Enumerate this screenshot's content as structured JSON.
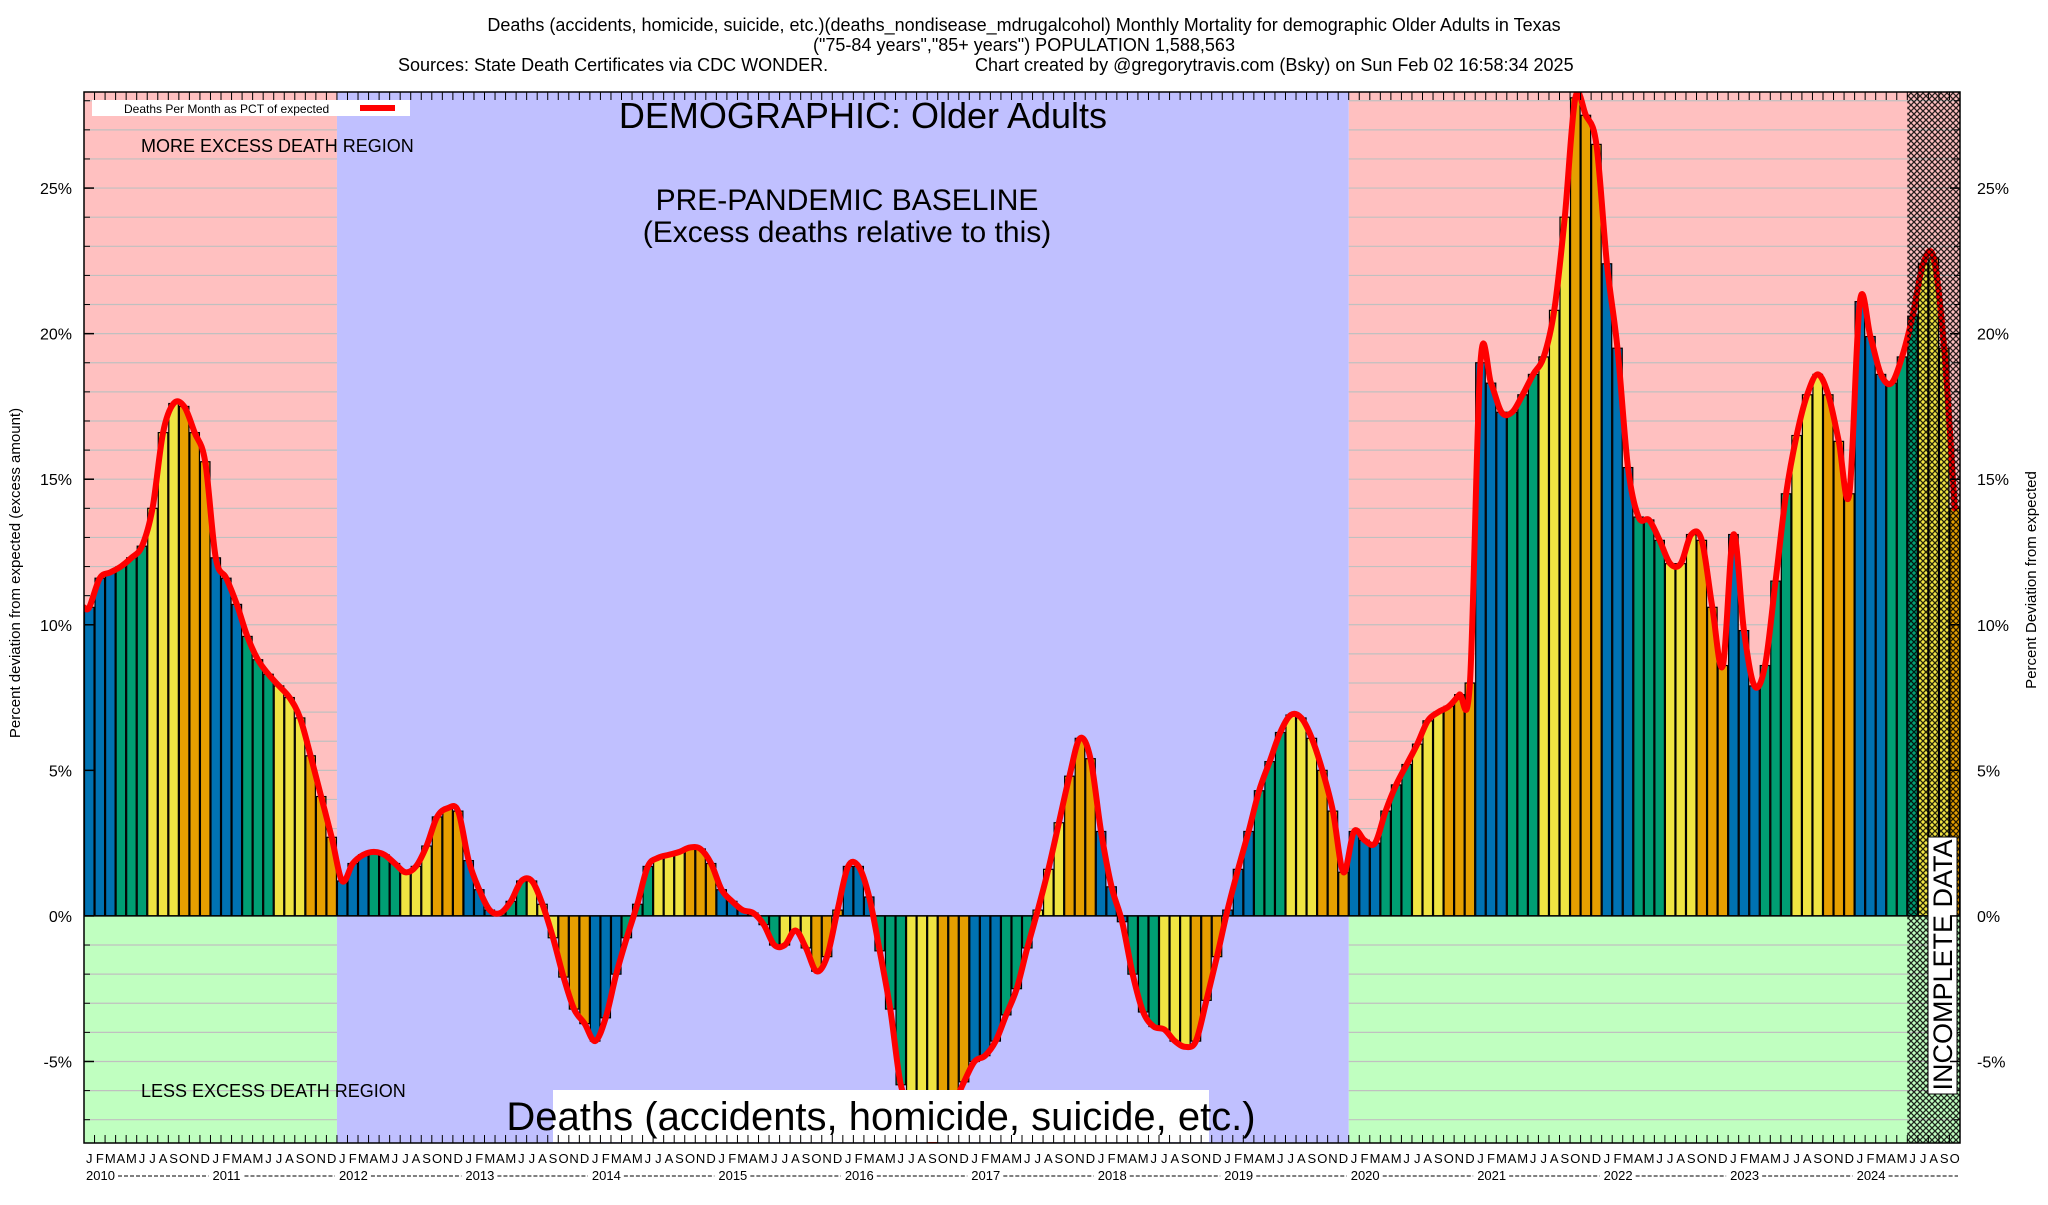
{
  "header": {
    "title_line1": "Deaths (accidents, homicide, suicide, etc.)(deaths_nondisease_mdrugalcohol) Monthly Mortality for demographic Older Adults in Texas",
    "title_line2": "(\"75-84 years\",\"85+ years\") POPULATION 1,588,563",
    "sources": "Sources: State Death Certificates via CDC WONDER.",
    "credit": "Chart created by @gregorytravis.com (Bsky) on Sun Feb 02 16:58:34 2025"
  },
  "annotations": {
    "demographic": "DEMOGRAPHIC: Older Adults",
    "more_region": "MORE EXCESS DEATH REGION",
    "less_region": "LESS EXCESS DEATH REGION",
    "baseline_line1": "PRE-PANDEMIC BASELINE",
    "baseline_line2": "(Excess deaths relative to this)",
    "cause_label": "Deaths (accidents, homicide, suicide, etc.)",
    "incomplete": "INCOMPLETE DATA"
  },
  "colors": {
    "q1": "#0072B2",
    "q2": "#009E73",
    "q3": "#F0E442",
    "q4": "#E69F00",
    "line": "#FF0000",
    "more_bg": "#FFC0C0",
    "less_bg": "#C0FFC0",
    "baseline_bg": "#C0C0FF",
    "grid": "#C0C0C0"
  },
  "chart_data": {
    "type": "bar",
    "title": "Deaths (accidents, homicide, suicide, etc.) Monthly Mortality for demographic Older Adults in Texas",
    "legend": {
      "label": "Deaths Per Month as PCT of expected",
      "placement": "top-left"
    },
    "ylabel_left": "Percent deviation from expected (excess amount)",
    "ylabel_right": "Percent Deviation from expected",
    "ylim": [
      -7.8,
      28.3
    ],
    "yticks": [
      -5,
      0,
      5,
      10,
      15,
      20,
      25
    ],
    "ytick_labels": [
      "-5%",
      "0%",
      "5%",
      "10%",
      "15%",
      "20%",
      "25%"
    ],
    "grid": true,
    "start": "2010-01",
    "month_letters": [
      "J",
      "F",
      "M",
      "A",
      "M",
      "J",
      "J",
      "A",
      "S",
      "O",
      "N",
      "D"
    ],
    "years": [
      "2010",
      "2011",
      "2012",
      "2013",
      "2014",
      "2015",
      "2016",
      "2017",
      "2018",
      "2019",
      "2020",
      "2021",
      "2022",
      "2023",
      "2024"
    ],
    "baseline_period": [
      "2012-01",
      "2019-12"
    ],
    "incomplete_from": "2024-06",
    "values": [
      10.6,
      11.6,
      11.8,
      12.0,
      12.3,
      12.7,
      14.0,
      16.6,
      17.6,
      17.5,
      16.6,
      15.6,
      12.3,
      11.6,
      10.7,
      9.6,
      8.8,
      8.3,
      7.9,
      7.5,
      6.8,
      5.5,
      4.1,
      2.7,
      1.2,
      1.8,
      2.1,
      2.2,
      2.1,
      1.8,
      1.5,
      1.7,
      2.4,
      3.4,
      3.7,
      3.6,
      1.9,
      0.9,
      0.2,
      0.1,
      0.5,
      1.2,
      1.2,
      0.4,
      -0.75,
      -2.1,
      -3.2,
      -3.7,
      -4.3,
      -3.5,
      -2.0,
      -0.75,
      0.4,
      1.7,
      2.0,
      2.1,
      2.2,
      2.35,
      2.3,
      1.8,
      0.9,
      0.5,
      0.2,
      0.1,
      -0.3,
      -1.0,
      -1.0,
      -0.5,
      -1.1,
      -1.9,
      -1.4,
      0.2,
      1.7,
      1.7,
      0.65,
      -1.2,
      -3.2,
      -5.8,
      -6.5,
      -7.0,
      -7.8,
      -7.2,
      -6.5,
      -5.7,
      -5.0,
      -4.8,
      -4.3,
      -3.4,
      -2.5,
      -1.1,
      0.2,
      1.6,
      3.2,
      4.8,
      6.1,
      5.4,
      2.9,
      1.0,
      -0.2,
      -2.0,
      -3.3,
      -3.8,
      -3.9,
      -4.3,
      -4.5,
      -4.3,
      -2.9,
      -1.4,
      0.2,
      1.6,
      2.9,
      4.3,
      5.3,
      6.3,
      6.9,
      6.8,
      6.1,
      5.0,
      3.6,
      1.5,
      2.9,
      2.6,
      2.5,
      3.6,
      4.5,
      5.2,
      5.9,
      6.7,
      7.0,
      7.2,
      7.6,
      8.0,
      19.0,
      18.3,
      17.3,
      17.3,
      17.9,
      18.6,
      19.2,
      20.8,
      24.0,
      28.1,
      27.5,
      26.5,
      22.4,
      19.5,
      15.4,
      13.7,
      13.6,
      12.9,
      12.1,
      12.1,
      13.1,
      12.9,
      10.6,
      8.6,
      13.1,
      9.8,
      7.9,
      8.6,
      11.5,
      14.5,
      16.5,
      17.9,
      18.6,
      17.9,
      16.3,
      14.5,
      21.1,
      19.9,
      18.6,
      18.3,
      19.2,
      20.6,
      22.4,
      22.6,
      19.5,
      14.0
    ]
  }
}
